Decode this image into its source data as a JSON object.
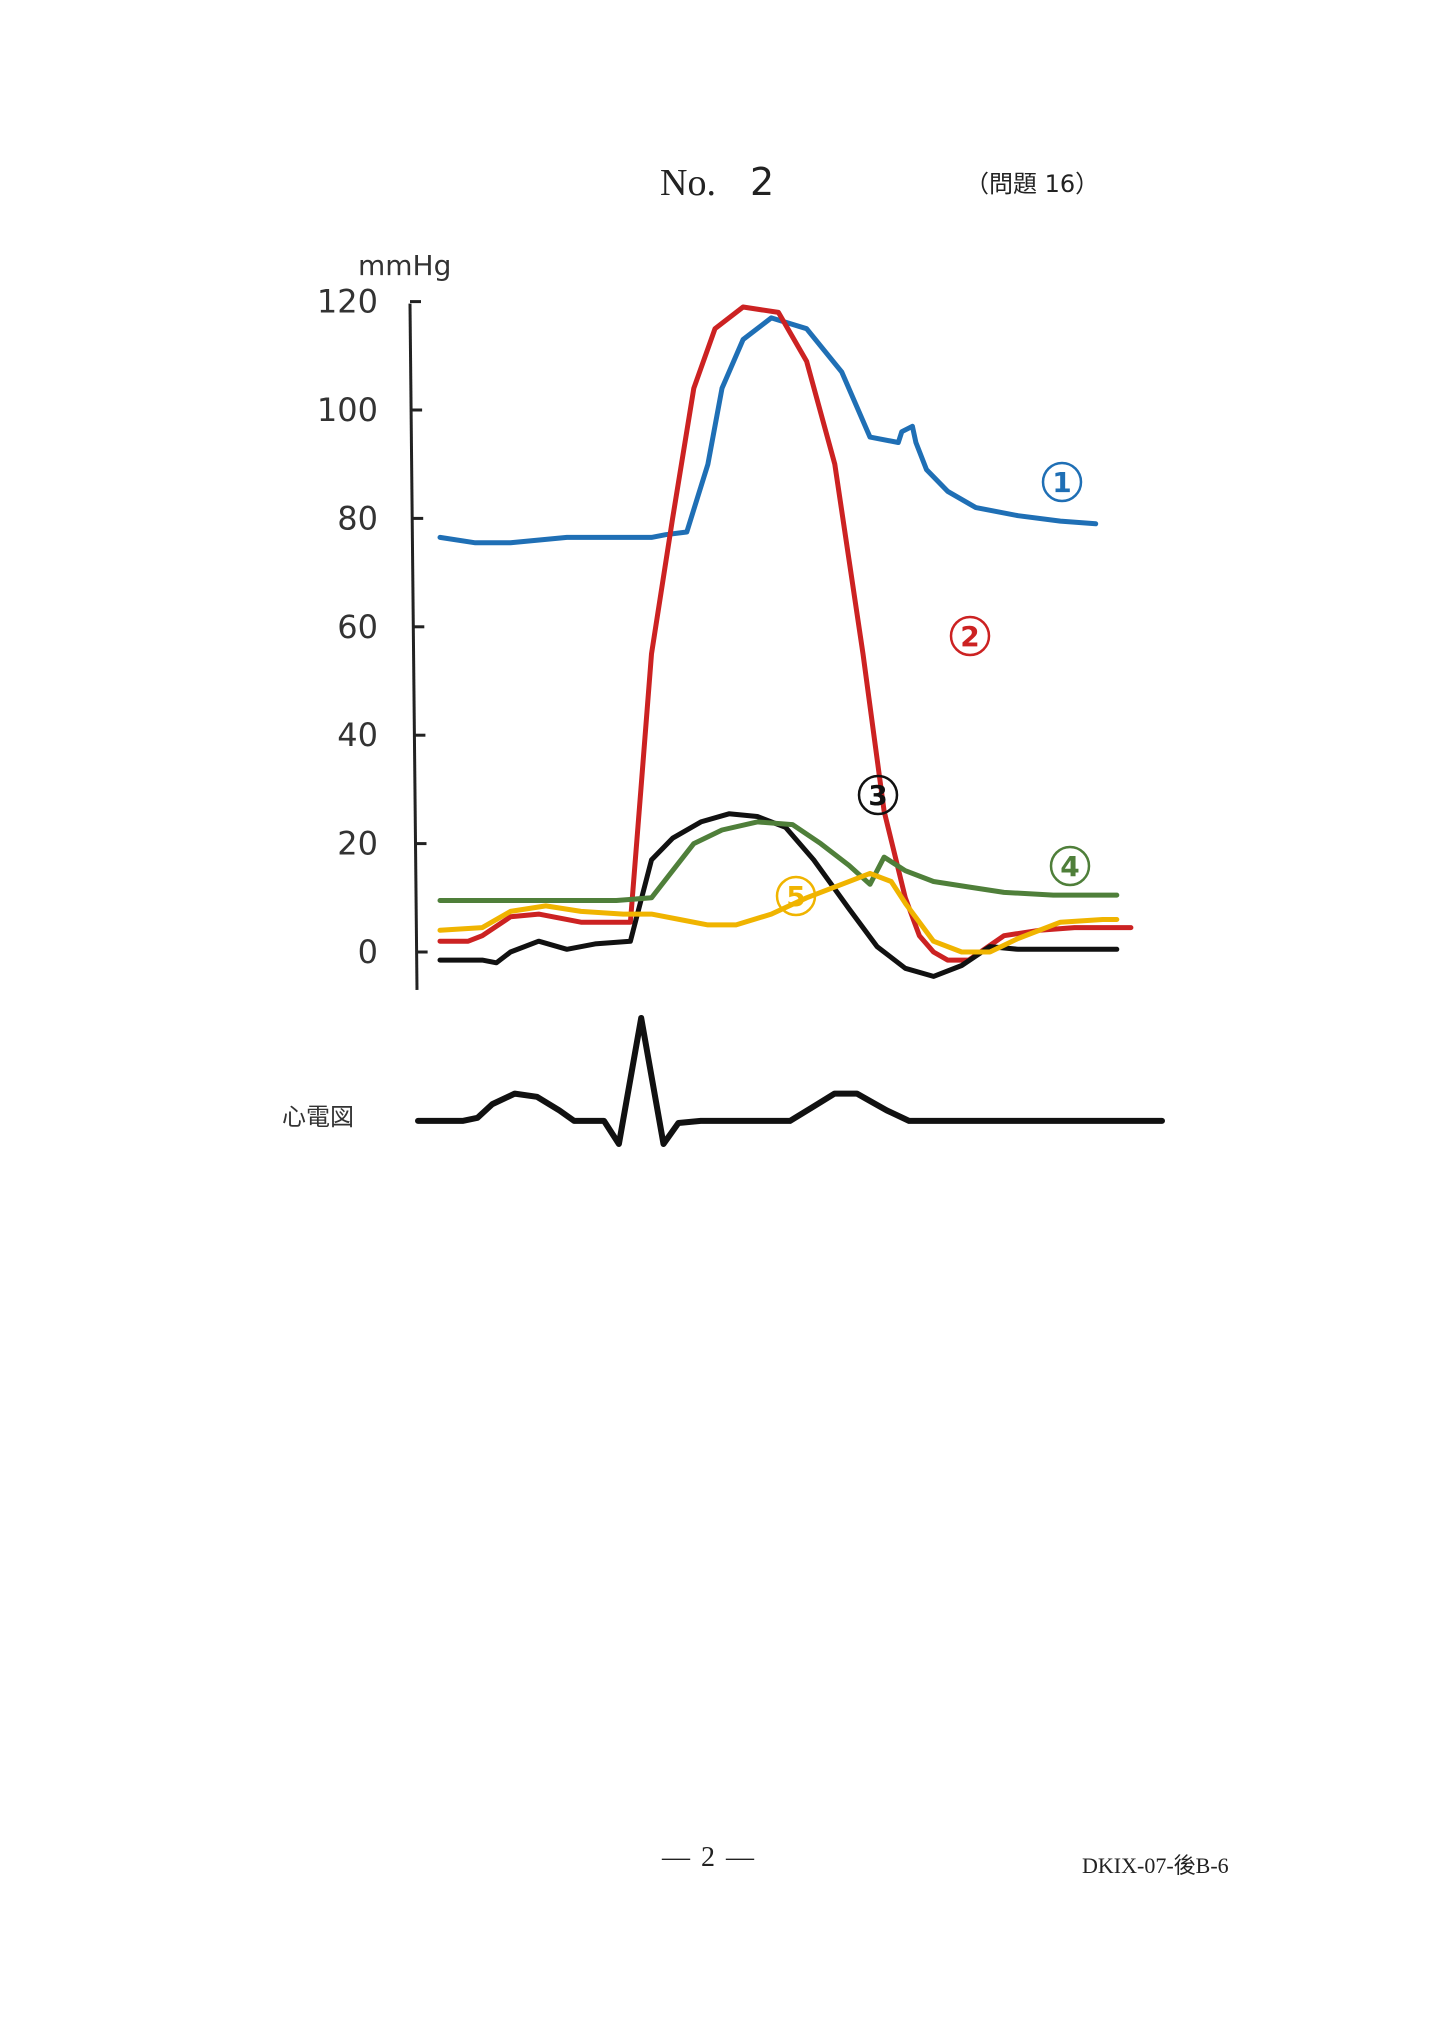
{
  "header": {
    "no_prefix": "No.",
    "no_number": "2",
    "problem_ref": "（問題 16）"
  },
  "footer": {
    "page_number": "— 2 —",
    "doc_code": "DKIX-07-後B-6"
  },
  "chart_data": {
    "type": "line",
    "title": "",
    "ylabel": "mmHg",
    "ylim": [
      -7,
      120
    ],
    "yticks": [
      0,
      20,
      40,
      60,
      80,
      100,
      120
    ],
    "x_unit": "time (normalized 0–1 over one cardiac cycle)",
    "grid": false,
    "series": [
      {
        "name": "①",
        "color": "#1f6fb5",
        "x": [
          0.0,
          0.05,
          0.1,
          0.18,
          0.25,
          0.3,
          0.32,
          0.35,
          0.38,
          0.4,
          0.43,
          0.47,
          0.52,
          0.57,
          0.61,
          0.65,
          0.655,
          0.67,
          0.675,
          0.69,
          0.72,
          0.76,
          0.82,
          0.88,
          0.93
        ],
        "y": [
          76.5,
          75.5,
          75.5,
          76.5,
          76.5,
          76.5,
          77,
          77.5,
          90,
          104,
          113,
          117,
          115,
          107,
          95,
          94,
          96,
          97,
          94,
          89,
          85,
          82,
          80.5,
          79.5,
          79
        ]
      },
      {
        "name": "②",
        "color": "#cc2222",
        "x": [
          0.0,
          0.04,
          0.06,
          0.1,
          0.14,
          0.2,
          0.27,
          0.285,
          0.3,
          0.33,
          0.36,
          0.39,
          0.43,
          0.48,
          0.52,
          0.56,
          0.6,
          0.63,
          0.66,
          0.68,
          0.7,
          0.72,
          0.75,
          0.8,
          0.85,
          0.9,
          0.95,
          0.98
        ],
        "y": [
          2,
          2,
          3,
          6.5,
          7,
          5.5,
          5.5,
          30,
          55,
          80,
          104,
          115,
          119,
          118,
          109,
          90,
          55,
          26,
          10,
          3,
          0,
          -1.5,
          -1.5,
          3,
          4,
          4.5,
          4.5,
          4.5
        ]
      },
      {
        "name": "③",
        "color": "#111111",
        "x": [
          0.0,
          0.06,
          0.08,
          0.1,
          0.14,
          0.18,
          0.22,
          0.27,
          0.3,
          0.33,
          0.37,
          0.41,
          0.45,
          0.49,
          0.53,
          0.58,
          0.62,
          0.66,
          0.7,
          0.74,
          0.78,
          0.82,
          0.86,
          0.9,
          0.94,
          0.96
        ],
        "y": [
          -1.5,
          -1.5,
          -2,
          0,
          2,
          0.5,
          1.5,
          2,
          17,
          21,
          24,
          25.5,
          25,
          23,
          17,
          8,
          1,
          -3,
          -4.5,
          -2.5,
          1,
          0.5,
          0.5,
          0.5,
          0.5,
          0.5
        ]
      },
      {
        "name": "④",
        "color": "#4f7f3a",
        "x": [
          0.0,
          0.1,
          0.2,
          0.25,
          0.3,
          0.33,
          0.36,
          0.4,
          0.45,
          0.5,
          0.54,
          0.58,
          0.61,
          0.63,
          0.66,
          0.7,
          0.75,
          0.8,
          0.87,
          0.93,
          0.96
        ],
        "y": [
          9.5,
          9.5,
          9.5,
          9.5,
          10,
          15,
          20,
          22.5,
          24,
          23.5,
          20,
          16,
          12.5,
          17.5,
          15,
          13,
          12,
          11,
          10.5,
          10.5,
          10.5
        ]
      },
      {
        "name": "⑤",
        "color": "#f0b400",
        "x": [
          0.0,
          0.06,
          0.1,
          0.15,
          0.2,
          0.26,
          0.3,
          0.34,
          0.38,
          0.42,
          0.47,
          0.52,
          0.57,
          0.61,
          0.64,
          0.66,
          0.7,
          0.74,
          0.78,
          0.82,
          0.88,
          0.94,
          0.96
        ],
        "y": [
          4,
          4.5,
          7.5,
          8.5,
          7.5,
          7,
          7,
          6,
          5,
          5,
          7,
          10,
          12.5,
          14.5,
          13,
          9,
          2,
          0,
          0,
          2.5,
          5.5,
          6,
          6
        ]
      }
    ],
    "ecg": {
      "label": "心電図",
      "color": "#111111",
      "x": [
        0.0,
        0.06,
        0.08,
        0.1,
        0.13,
        0.16,
        0.19,
        0.21,
        0.25,
        0.27,
        0.3,
        0.33,
        0.35,
        0.38,
        0.41,
        0.45,
        0.5,
        0.53,
        0.56,
        0.59,
        0.61,
        0.63,
        0.66,
        0.7,
        0.8,
        0.9,
        1.0
      ],
      "y": [
        0.02,
        0.02,
        0.05,
        0.18,
        0.28,
        0.25,
        0.12,
        0.02,
        0.02,
        -0.2,
        1.0,
        -0.2,
        0.0,
        0.02,
        0.02,
        0.02,
        0.02,
        0.15,
        0.28,
        0.28,
        0.2,
        0.12,
        0.02,
        0.02,
        0.02,
        0.02,
        0.02
      ]
    }
  }
}
